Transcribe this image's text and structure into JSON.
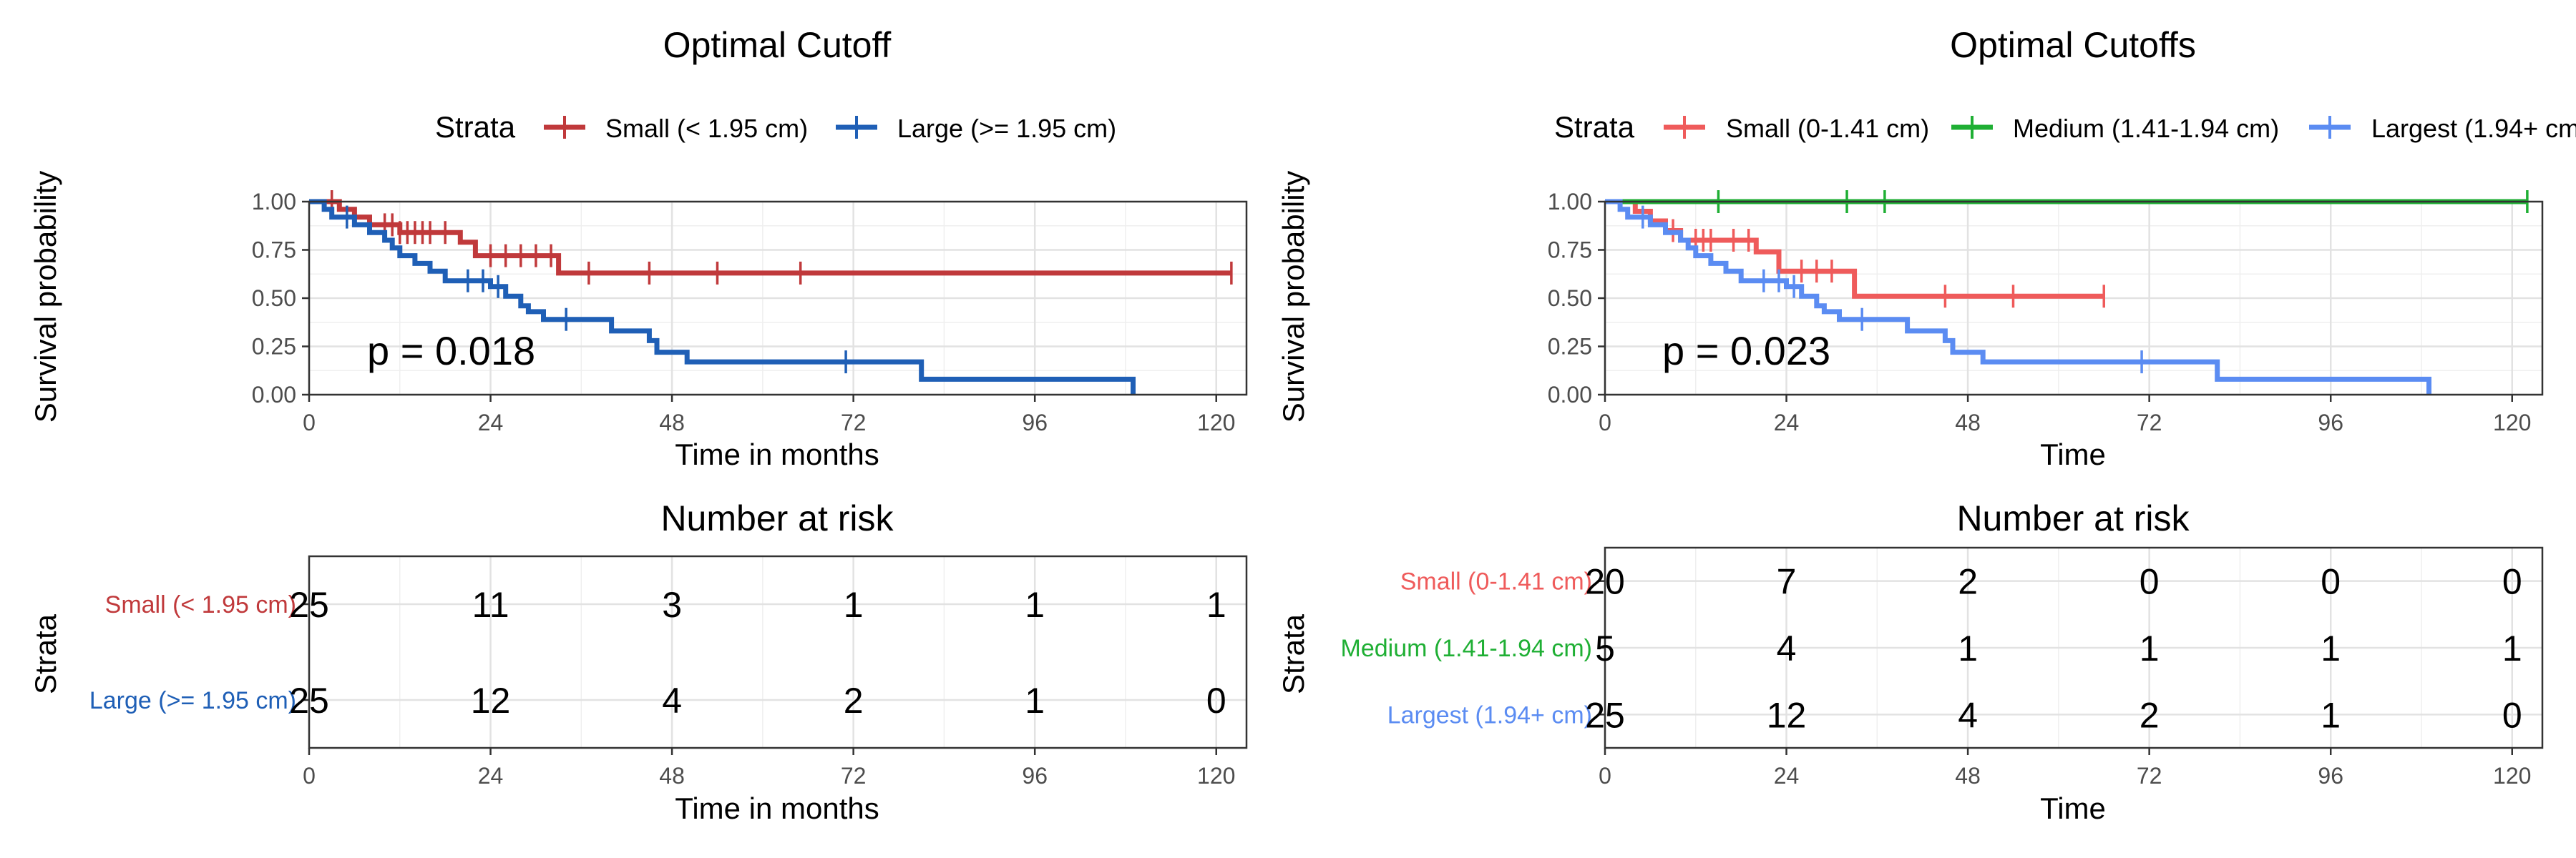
{
  "colors": {
    "small_left": "#C0393B",
    "large_left": "#1F5FB6",
    "small_right": "#EF5B5B",
    "medium_right": "#1FAF34",
    "largest_right": "#5B8CF2"
  },
  "chart_data": [
    {
      "type": "line",
      "subtype": "kaplan-meier",
      "title": "Optimal Cutoff",
      "legend_title": "Strata",
      "legend_position": "top",
      "xlabel": "Time in months",
      "ylabel": "Survival probability",
      "xlim": [
        0,
        124
      ],
      "ylim": [
        0,
        1
      ],
      "xticks": [
        "0",
        "24",
        "48",
        "72",
        "96",
        "120"
      ],
      "yticks": [
        "0.00",
        "0.25",
        "0.50",
        "0.75",
        "1.00"
      ],
      "grid": true,
      "annotation": "p = 0.018",
      "series": [
        {
          "name": "Small (< 1.95 cm)",
          "color": "#C0393B",
          "steps": [
            [
              0,
              1.0
            ],
            [
              4,
              0.96
            ],
            [
              6,
              0.92
            ],
            [
              8,
              0.88
            ],
            [
              12,
              0.84
            ],
            [
              20,
              0.79
            ],
            [
              22,
              0.72
            ],
            [
              33,
              0.63
            ],
            [
              122,
              0.63
            ]
          ],
          "censor_times": [
            3,
            10,
            11,
            12,
            13,
            14,
            15,
            16,
            18,
            24,
            26,
            28,
            30,
            32,
            37,
            45,
            54,
            65,
            122
          ]
        },
        {
          "name": "Large (>= 1.95 cm)",
          "color": "#1F5FB6",
          "steps": [
            [
              0,
              1.0
            ],
            [
              2,
              0.96
            ],
            [
              3,
              0.92
            ],
            [
              6,
              0.88
            ],
            [
              8,
              0.84
            ],
            [
              10,
              0.8
            ],
            [
              11,
              0.76
            ],
            [
              12,
              0.72
            ],
            [
              14,
              0.68
            ],
            [
              16,
              0.64
            ],
            [
              18,
              0.59
            ],
            [
              24,
              0.56
            ],
            [
              26,
              0.51
            ],
            [
              28,
              0.46
            ],
            [
              29,
              0.43
            ],
            [
              31,
              0.39
            ],
            [
              40,
              0.33
            ],
            [
              45,
              0.28
            ],
            [
              46,
              0.22
            ],
            [
              50,
              0.17
            ],
            [
              81,
              0.08
            ],
            [
              109,
              0.0
            ]
          ],
          "censor_times": [
            5,
            21,
            23,
            25,
            34,
            71
          ]
        }
      ]
    },
    {
      "type": "table",
      "title": "Number at risk",
      "ylabel": "Strata",
      "xlabel": "Time in months",
      "xticks": [
        "0",
        "24",
        "48",
        "72",
        "96",
        "120"
      ],
      "times": [
        0,
        24,
        48,
        72,
        96,
        120
      ],
      "rows": [
        {
          "name": "Small (< 1.95 cm)",
          "color": "#C0393B",
          "values": [
            "25",
            "11",
            "3",
            "1",
            "1",
            "1"
          ]
        },
        {
          "name": "Large (>= 1.95 cm)",
          "color": "#1F5FB6",
          "values": [
            "25",
            "12",
            "4",
            "2",
            "1",
            "0"
          ]
        }
      ]
    },
    {
      "type": "line",
      "subtype": "kaplan-meier",
      "title": "Optimal Cutoffs",
      "legend_title": "Strata",
      "legend_position": "top",
      "xlabel": "Time",
      "ylabel": "Survival probability",
      "xlim": [
        0,
        124
      ],
      "ylim": [
        0,
        1
      ],
      "xticks": [
        "0",
        "24",
        "48",
        "72",
        "96",
        "120"
      ],
      "yticks": [
        "0.00",
        "0.25",
        "0.50",
        "0.75",
        "1.00"
      ],
      "grid": true,
      "annotation": "p = 0.023",
      "series": [
        {
          "name": "Small (0-1.41 cm)",
          "color": "#EF5B5B",
          "steps": [
            [
              0,
              1.0
            ],
            [
              4,
              0.95
            ],
            [
              6,
              0.9
            ],
            [
              8,
              0.85
            ],
            [
              10,
              0.8
            ],
            [
              20,
              0.74
            ],
            [
              23,
              0.64
            ],
            [
              33,
              0.51
            ],
            [
              66,
              0.51
            ]
          ],
          "censor_times": [
            9,
            12,
            13,
            14,
            17,
            19,
            26,
            28,
            30,
            45,
            54,
            66
          ]
        },
        {
          "name": "Medium (1.41-1.94 cm)",
          "color": "#1FAF34",
          "steps": [
            [
              0,
              1.0
            ],
            [
              122,
              1.0
            ]
          ],
          "censor_times": [
            15,
            32,
            37,
            122
          ]
        },
        {
          "name": "Largest (1.94+ cm)",
          "color": "#5B8CF2",
          "steps": [
            [
              0,
              1.0
            ],
            [
              2,
              0.96
            ],
            [
              3,
              0.92
            ],
            [
              6,
              0.88
            ],
            [
              8,
              0.84
            ],
            [
              10,
              0.8
            ],
            [
              11,
              0.76
            ],
            [
              12,
              0.72
            ],
            [
              14,
              0.68
            ],
            [
              16,
              0.64
            ],
            [
              18,
              0.59
            ],
            [
              24,
              0.56
            ],
            [
              26,
              0.51
            ],
            [
              28,
              0.46
            ],
            [
              29,
              0.43
            ],
            [
              31,
              0.39
            ],
            [
              40,
              0.33
            ],
            [
              45,
              0.28
            ],
            [
              46,
              0.22
            ],
            [
              50,
              0.17
            ],
            [
              81,
              0.08
            ],
            [
              109,
              0.0
            ]
          ],
          "censor_times": [
            5,
            21,
            23,
            25,
            34,
            71
          ]
        }
      ]
    },
    {
      "type": "table",
      "title": "Number at risk",
      "ylabel": "Strata",
      "xlabel": "Time",
      "xticks": [
        "0",
        "24",
        "48",
        "72",
        "96",
        "120"
      ],
      "times": [
        0,
        24,
        48,
        72,
        96,
        120
      ],
      "rows": [
        {
          "name": "Small (0-1.41 cm)",
          "color": "#EF5B5B",
          "values": [
            "20",
            "7",
            "2",
            "0",
            "0",
            "0"
          ]
        },
        {
          "name": "Medium (1.41-1.94 cm)",
          "color": "#1FAF34",
          "values": [
            "5",
            "4",
            "1",
            "1",
            "1",
            "1"
          ]
        },
        {
          "name": "Largest (1.94+ cm)",
          "color": "#5B8CF2",
          "values": [
            "25",
            "12",
            "4",
            "2",
            "1",
            "0"
          ]
        }
      ]
    }
  ]
}
